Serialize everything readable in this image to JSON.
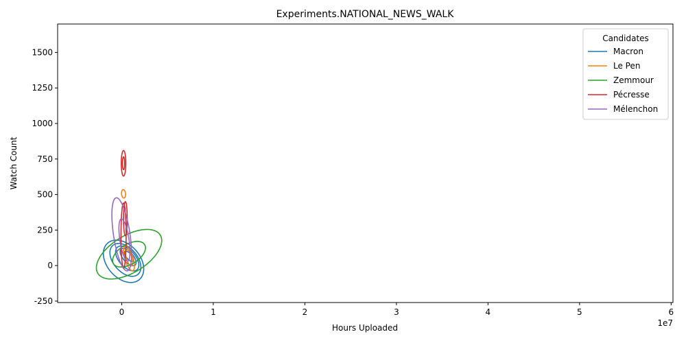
{
  "chart_data": {
    "type": "contour",
    "title": "Experiments.NATIONAL_NEWS_WALK",
    "xlabel": "Hours Uploaded",
    "ylabel": "Watch Count",
    "x_offset_label": "1e7",
    "xlim": [
      -0.7,
      6.02
    ],
    "ylim": [
      -260,
      1700
    ],
    "x_ticks": [
      0,
      1,
      2,
      3,
      4,
      5,
      6
    ],
    "y_ticks": [
      -250,
      0,
      250,
      500,
      750,
      1000,
      1250,
      1500
    ],
    "grid": false,
    "legend": {
      "title": "Candidates",
      "placement": "top-right"
    },
    "series": [
      {
        "name": "Macron",
        "color": "#1f77b4",
        "contours": [
          {
            "cx": 0.02,
            "cy": 30,
            "rx": 0.18,
            "ry": 170,
            "rot": 0.72
          },
          {
            "cx": 0.04,
            "cy": 40,
            "rx": 0.13,
            "ry": 135,
            "rot": 0.72
          },
          {
            "cx": 0.06,
            "cy": 50,
            "rx": 0.09,
            "ry": 105,
            "rot": 0.72
          },
          {
            "cx": 0.07,
            "cy": 60,
            "rx": 0.055,
            "ry": 75,
            "rot": 0.72
          },
          {
            "cx": 0.08,
            "cy": 65,
            "rx": 0.03,
            "ry": 45,
            "rot": 0.72
          }
        ]
      },
      {
        "name": "Le Pen",
        "color": "#ff7f0e",
        "contours": [
          {
            "cx": 0.08,
            "cy": 50,
            "rx": 0.045,
            "ry": 90,
            "rot": 0.3
          },
          {
            "cx": 0.08,
            "cy": 55,
            "rx": 0.03,
            "ry": 60,
            "rot": 0.3
          },
          {
            "cx": 0.02,
            "cy": 505,
            "rx": 0.022,
            "ry": 30,
            "rot": 0.1
          }
        ]
      },
      {
        "name": "Zemmour",
        "color": "#2ca02c",
        "contours": [
          {
            "cx": 0.08,
            "cy": 80,
            "rx": 0.4,
            "ry": 130,
            "rot": 0.55
          },
          {
            "cx": 0.08,
            "cy": 80,
            "rx": 0.2,
            "ry": 70,
            "rot": 0.55
          }
        ]
      },
      {
        "name": "Pécresse",
        "color": "#d62728",
        "contours": [
          {
            "cx": 0.02,
            "cy": 210,
            "rx": 0.028,
            "ry": 230,
            "rot": 0.0
          },
          {
            "cx": 0.04,
            "cy": 330,
            "rx": 0.02,
            "ry": 120,
            "rot": 0.0
          },
          {
            "cx": 0.02,
            "cy": 720,
            "rx": 0.025,
            "ry": 90,
            "rot": 0.0
          },
          {
            "cx": 0.02,
            "cy": 720,
            "rx": 0.012,
            "ry": 45,
            "rot": 0.0
          }
        ]
      },
      {
        "name": "Mélenchon",
        "color": "#9467bd",
        "contours": [
          {
            "cx": 0.0,
            "cy": 220,
            "rx": 0.09,
            "ry": 260,
            "rot": 0.15
          },
          {
            "cx": 0.03,
            "cy": 180,
            "rx": 0.05,
            "ry": 150,
            "rot": 0.15
          }
        ]
      }
    ]
  }
}
